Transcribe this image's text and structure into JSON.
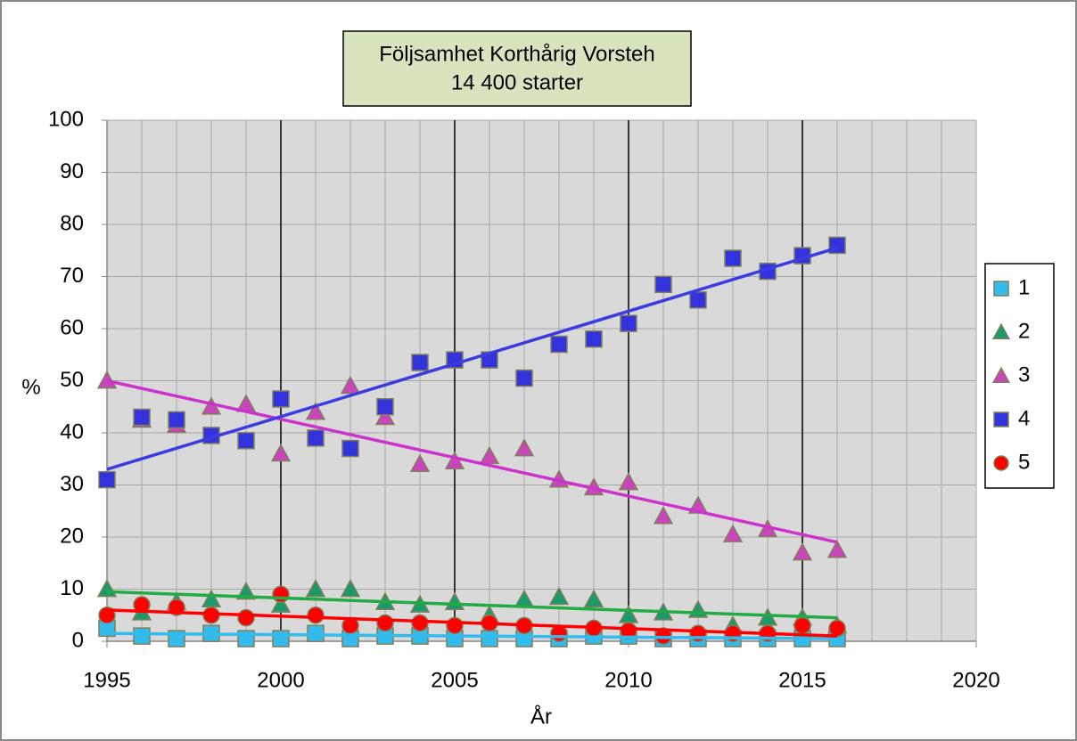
{
  "chart_data": {
    "type": "scatter",
    "title": [
      "Följsamhet Korthårig Vorsteh",
      "14 400 starter"
    ],
    "x_label": "År",
    "y_label": "%",
    "x": [
      1995,
      1996,
      1997,
      1998,
      1999,
      2000,
      2001,
      2002,
      2003,
      2004,
      2005,
      2006,
      2007,
      2008,
      2009,
      2010,
      2011,
      2012,
      2013,
      2014,
      2015,
      2016
    ],
    "xlim": [
      1995,
      2020
    ],
    "xticks": [
      1995,
      2000,
      2005,
      2010,
      2015,
      2020
    ],
    "x_minor_grid": 1,
    "ylim": [
      0,
      100
    ],
    "yticks": [
      0,
      10,
      20,
      30,
      40,
      50,
      60,
      70,
      80,
      90,
      100
    ],
    "grid": true,
    "legend": "right",
    "series": [
      {
        "name": "1",
        "color": "#33bbee",
        "marker": "square",
        "values": [
          2.5,
          1,
          0.5,
          1.5,
          0.5,
          0.5,
          1.5,
          0.5,
          1,
          1,
          0.5,
          0.5,
          0.5,
          0.5,
          1,
          1,
          0.5,
          0.5,
          0.5,
          0.5,
          0.5,
          0.5
        ],
        "trend": {
          "x": [
            1995,
            2016
          ],
          "values": [
            1.5,
            0.5
          ],
          "color": "#33bbee"
        }
      },
      {
        "name": "2",
        "color": "#1a9a6a",
        "marker": "triangle",
        "values": [
          10,
          5.5,
          7.5,
          8,
          9.5,
          7,
          10,
          10,
          7.5,
          7,
          7.5,
          5,
          8,
          8.5,
          8,
          5,
          5.5,
          6,
          3,
          4.5,
          4.5,
          3
        ],
        "trend": {
          "x": [
            1995,
            2016
          ],
          "values": [
            9.5,
            4.5
          ],
          "color": "#22aa44"
        }
      },
      {
        "name": "3",
        "color": "#cc44bb",
        "marker": "triangle",
        "values": [
          50,
          42.5,
          41.5,
          45,
          45.5,
          36,
          44,
          49,
          43,
          34,
          34.5,
          35.5,
          37,
          31,
          29.5,
          30.5,
          24,
          26,
          20.5,
          21.5,
          17,
          17.5
        ],
        "trend": {
          "x": [
            1995,
            2016
          ],
          "values": [
            50,
            19
          ],
          "color": "#cc33cc"
        }
      },
      {
        "name": "4",
        "color": "#3333dd",
        "marker": "square",
        "values": [
          31,
          43,
          42.5,
          39.5,
          38.5,
          46.5,
          39,
          37,
          45,
          53.5,
          54,
          54,
          50.5,
          57,
          58,
          61,
          68.5,
          65.5,
          73.5,
          71,
          74,
          76
        ],
        "trend": {
          "x": [
            1995,
            2016
          ],
          "values": [
            33,
            75.5
          ],
          "color": "#3b3be0"
        }
      },
      {
        "name": "5",
        "color": "#ff0000",
        "marker": "circle",
        "values": [
          5,
          7,
          6.5,
          5,
          4.5,
          9,
          5,
          3,
          3.5,
          3.5,
          3,
          3.5,
          3,
          1.5,
          2.5,
          2,
          1,
          1.5,
          1.5,
          1.5,
          3,
          2.5
        ],
        "trend": {
          "x": [
            1995,
            2016
          ],
          "values": [
            6,
            1
          ],
          "color": "#ff0000"
        }
      }
    ]
  }
}
